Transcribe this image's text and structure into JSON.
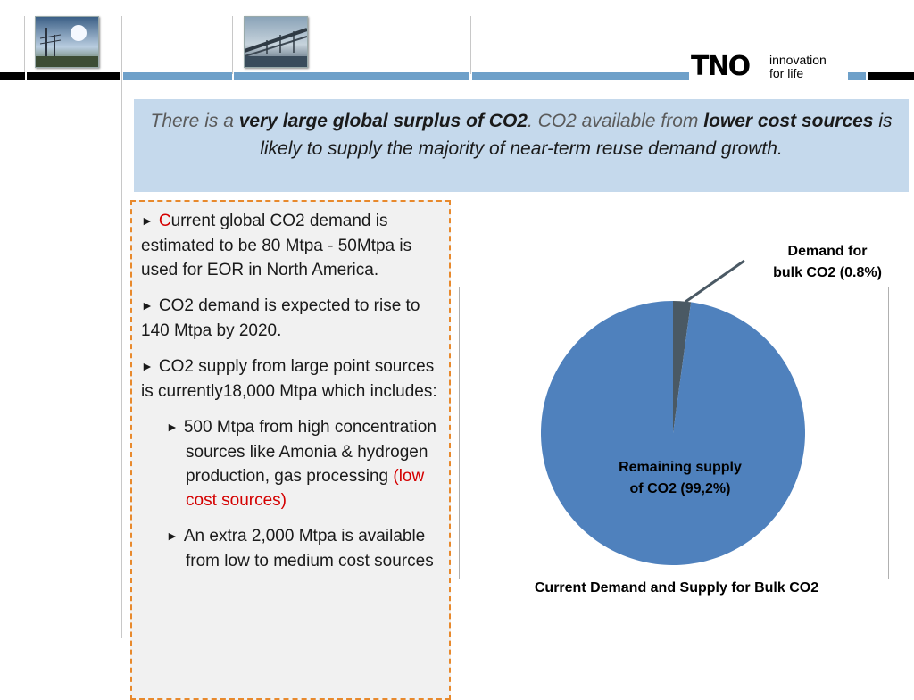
{
  "colors": {
    "bar": "#6ea0c9",
    "headline_bg": "#c5d9ec",
    "pie_main": "#4f81bd",
    "pie_small": "#4a5964",
    "accent_red": "#d40000",
    "dash_border": "#e8892c"
  },
  "logo": {
    "mark": "TNO",
    "tagline_line1": "innovation",
    "tagline_line2": "for life"
  },
  "headline": {
    "p1": "There is a ",
    "b1": "very large global surplus of CO2",
    "p2": ". CO2 available from ",
    "b2": "lower cost sources",
    "p3": " is likely to supply the majority of near-term reuse demand growth."
  },
  "bullets": {
    "b1_first": "C",
    "b1_rest": "urrent global CO2 demand is estimated to be 80 Mtpa - 50Mtpa is used for EOR in North America.",
    "b2": "CO2 demand is expected to rise to 140 Mtpa by 2020.",
    "b3": "CO2 supply from large point sources is currently18,000 Mtpa which includes:",
    "s1_text": "500 Mtpa from high concentration sources like Amonia & hydrogen production, gas processing ",
    "s1_red": "(low cost sources)",
    "s2": "An extra 2,000 Mtpa is available from low to medium cost sources"
  },
  "chart_data": {
    "type": "pie",
    "title": "Current Demand and Supply for Bulk CO2",
    "slices": [
      {
        "label_line1": "Demand for",
        "label_line2": "bulk CO2 (0.8%)",
        "value": 0.8,
        "color": "#4a5964"
      },
      {
        "label_line1": "Remaining supply",
        "label_line2": "of CO2 (99,2%)",
        "value": 99.2,
        "color": "#4f81bd"
      }
    ]
  }
}
